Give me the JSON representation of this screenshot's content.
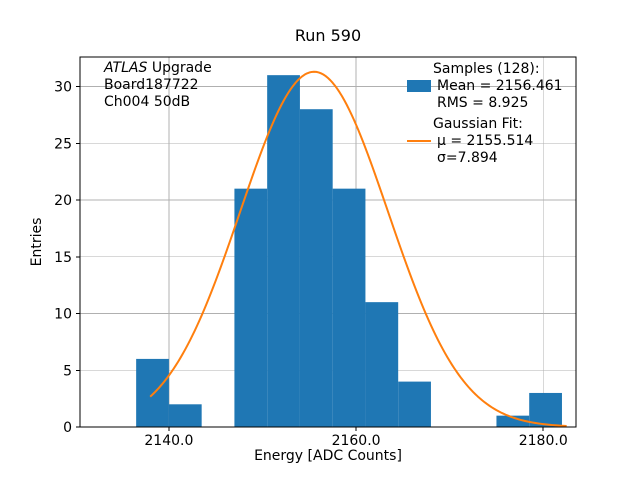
{
  "title": "Run 590",
  "xlabel": "Energy [ADC Counts]",
  "ylabel": "Entries",
  "annotation": {
    "line1_italic": "ATLAS",
    "line1_rest": " Upgrade",
    "line2": "Board187722",
    "line3": "Ch004 50dB"
  },
  "legend": {
    "samples_header": "Samples (128):",
    "mean": "Mean = 2156.461",
    "rms": "RMS = 8.925",
    "fit_header": "Gaussian Fit:",
    "mu": "μ = 2155.514",
    "sigma": "σ=7.894"
  },
  "colors": {
    "hist": "#1f77b4",
    "fit": "#ff7f0e",
    "grid": "#b0b0b0",
    "spine": "#000000",
    "background": "#ffffff"
  },
  "chart_data": {
    "type": "histogram+line",
    "title": "Run 590",
    "xlabel": "Energy [ADC Counts]",
    "ylabel": "Entries",
    "total_samples": 128,
    "mean": 2156.461,
    "rms": 8.925,
    "bin_start": 2136.5,
    "bin_width": 3.5,
    "counts": [
      6,
      2,
      0,
      21,
      31,
      28,
      21,
      11,
      4,
      0,
      0,
      1,
      3
    ],
    "gaussian": {
      "mu": 2155.514,
      "sigma": 7.894,
      "amplitude": 31.3,
      "x_start": 2138.0,
      "x_end": 2182.5
    },
    "xlim": [
      2130.5,
      2183.5
    ],
    "ylim": [
      0,
      32.6
    ],
    "xticks": [
      2140.0,
      2160.0,
      2180.0
    ],
    "xtick_labels": [
      "2140.0",
      "2160.0",
      "2180.0"
    ],
    "yticks": [
      0,
      5,
      10,
      15,
      20,
      25,
      30
    ],
    "ytick_labels": [
      "0",
      "5",
      "10",
      "15",
      "20",
      "25",
      "30"
    ],
    "grid": true,
    "legend_position": "upper-right"
  }
}
